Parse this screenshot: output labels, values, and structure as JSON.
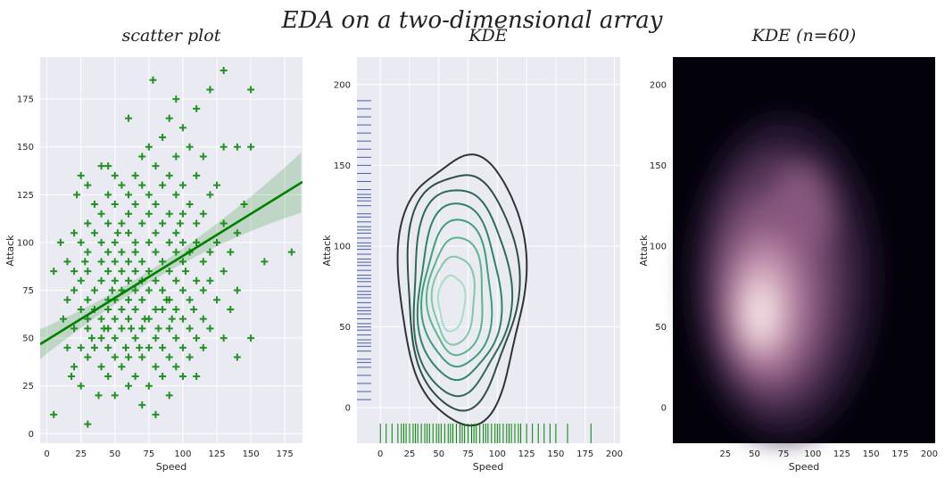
{
  "suptitle": "EDA on a two-dimensional array",
  "chart_data": [
    {
      "type": "scatter",
      "title": "scatter plot",
      "xlabel": "Speed",
      "ylabel": "Attack",
      "xlim": [
        -5,
        188
      ],
      "ylim": [
        -5,
        197
      ],
      "xticks": [
        0,
        25,
        50,
        75,
        100,
        125,
        150,
        175
      ],
      "yticks": [
        0,
        25,
        50,
        75,
        100,
        125,
        150,
        175
      ],
      "marker": "+",
      "color": "#008000",
      "grid": true,
      "regression": {
        "slope": 0.44,
        "intercept": 49,
        "ci_band": true
      },
      "points": [
        [
          5,
          10
        ],
        [
          5,
          85
        ],
        [
          10,
          100
        ],
        [
          12,
          60
        ],
        [
          15,
          45
        ],
        [
          15,
          70
        ],
        [
          15,
          90
        ],
        [
          18,
          30
        ],
        [
          20,
          35
        ],
        [
          20,
          55
        ],
        [
          20,
          75
        ],
        [
          20,
          85
        ],
        [
          20,
          105
        ],
        [
          22,
          125
        ],
        [
          25,
          25
        ],
        [
          25,
          45
        ],
        [
          25,
          65
        ],
        [
          25,
          80
        ],
        [
          25,
          100
        ],
        [
          25,
          135
        ],
        [
          28,
          90
        ],
        [
          30,
          5
        ],
        [
          30,
          40
        ],
        [
          30,
          55
        ],
        [
          30,
          60
        ],
        [
          30,
          70
        ],
        [
          30,
          85
        ],
        [
          30,
          95
        ],
        [
          30,
          110
        ],
        [
          30,
          130
        ],
        [
          33,
          50
        ],
        [
          35,
          45
        ],
        [
          35,
          65
        ],
        [
          35,
          75
        ],
        [
          35,
          105
        ],
        [
          35,
          120
        ],
        [
          38,
          20
        ],
        [
          40,
          35
        ],
        [
          40,
          50
        ],
        [
          40,
          60
        ],
        [
          40,
          80
        ],
        [
          40,
          90
        ],
        [
          40,
          100
        ],
        [
          40,
          115
        ],
        [
          40,
          140
        ],
        [
          42,
          55
        ],
        [
          45,
          30
        ],
        [
          45,
          45
        ],
        [
          45,
          55
        ],
        [
          45,
          65
        ],
        [
          45,
          70
        ],
        [
          45,
          85
        ],
        [
          45,
          95
        ],
        [
          45,
          110
        ],
        [
          45,
          125
        ],
        [
          45,
          140
        ],
        [
          48,
          75
        ],
        [
          50,
          20
        ],
        [
          50,
          40
        ],
        [
          50,
          50
        ],
        [
          50,
          60
        ],
        [
          50,
          70
        ],
        [
          50,
          80
        ],
        [
          50,
          90
        ],
        [
          50,
          100
        ],
        [
          50,
          120
        ],
        [
          50,
          135
        ],
        [
          52,
          105
        ],
        [
          55,
          35
        ],
        [
          55,
          55
        ],
        [
          55,
          65
        ],
        [
          55,
          75
        ],
        [
          55,
          85
        ],
        [
          55,
          95
        ],
        [
          55,
          110
        ],
        [
          55,
          130
        ],
        [
          58,
          45
        ],
        [
          60,
          25
        ],
        [
          60,
          40
        ],
        [
          60,
          60
        ],
        [
          60,
          70
        ],
        [
          60,
          80
        ],
        [
          60,
          90
        ],
        [
          60,
          105
        ],
        [
          60,
          115
        ],
        [
          60,
          125
        ],
        [
          60,
          165
        ],
        [
          62,
          55
        ],
        [
          65,
          30
        ],
        [
          65,
          50
        ],
        [
          65,
          65
        ],
        [
          65,
          75
        ],
        [
          65,
          85
        ],
        [
          65,
          95
        ],
        [
          65,
          100
        ],
        [
          65,
          120
        ],
        [
          65,
          135
        ],
        [
          68,
          45
        ],
        [
          70,
          15
        ],
        [
          70,
          40
        ],
        [
          70,
          55
        ],
        [
          70,
          70
        ],
        [
          70,
          80
        ],
        [
          70,
          90
        ],
        [
          70,
          110
        ],
        [
          70,
          130
        ],
        [
          70,
          145
        ],
        [
          72,
          60
        ],
        [
          75,
          25
        ],
        [
          75,
          45
        ],
        [
          75,
          60
        ],
        [
          75,
          75
        ],
        [
          75,
          85
        ],
        [
          75,
          100
        ],
        [
          75,
          115
        ],
        [
          75,
          125
        ],
        [
          75,
          150
        ],
        [
          78,
          185
        ],
        [
          80,
          10
        ],
        [
          80,
          35
        ],
        [
          80,
          50
        ],
        [
          80,
          65
        ],
        [
          80,
          80
        ],
        [
          80,
          95
        ],
        [
          80,
          105
        ],
        [
          80,
          120
        ],
        [
          80,
          140
        ],
        [
          82,
          55
        ],
        [
          85,
          30
        ],
        [
          85,
          45
        ],
        [
          85,
          65
        ],
        [
          85,
          75
        ],
        [
          85,
          90
        ],
        [
          85,
          110
        ],
        [
          85,
          130
        ],
        [
          85,
          155
        ],
        [
          88,
          70
        ],
        [
          90,
          20
        ],
        [
          90,
          40
        ],
        [
          90,
          55
        ],
        [
          90,
          70
        ],
        [
          90,
          85
        ],
        [
          90,
          100
        ],
        [
          90,
          115
        ],
        [
          90,
          135
        ],
        [
          90,
          165
        ],
        [
          92,
          60
        ],
        [
          95,
          35
        ],
        [
          95,
          50
        ],
        [
          95,
          65
        ],
        [
          95,
          80
        ],
        [
          95,
          95
        ],
        [
          95,
          105
        ],
        [
          95,
          125
        ],
        [
          95,
          145
        ],
        [
          95,
          175
        ],
        [
          98,
          110
        ],
        [
          100,
          30
        ],
        [
          100,
          45
        ],
        [
          100,
          60
        ],
        [
          100,
          75
        ],
        [
          100,
          90
        ],
        [
          100,
          100
        ],
        [
          100,
          115
        ],
        [
          100,
          130
        ],
        [
          100,
          160
        ],
        [
          102,
          85
        ],
        [
          105,
          40
        ],
        [
          105,
          55
        ],
        [
          105,
          70
        ],
        [
          105,
          95
        ],
        [
          105,
          120
        ],
        [
          105,
          150
        ],
        [
          108,
          65
        ],
        [
          110,
          30
        ],
        [
          110,
          50
        ],
        [
          110,
          80
        ],
        [
          110,
          100
        ],
        [
          110,
          110
        ],
        [
          110,
          135
        ],
        [
          110,
          170
        ],
        [
          115,
          45
        ],
        [
          115,
          60
        ],
        [
          115,
          75
        ],
        [
          115,
          90
        ],
        [
          115,
          115
        ],
        [
          115,
          145
        ],
        [
          120,
          55
        ],
        [
          120,
          80
        ],
        [
          120,
          95
        ],
        [
          120,
          125
        ],
        [
          120,
          180
        ],
        [
          125,
          70
        ],
        [
          125,
          100
        ],
        [
          125,
          130
        ],
        [
          130,
          50
        ],
        [
          130,
          85
        ],
        [
          130,
          110
        ],
        [
          130,
          150
        ],
        [
          130,
          190
        ],
        [
          135,
          65
        ],
        [
          135,
          95
        ],
        [
          140,
          40
        ],
        [
          140,
          75
        ],
        [
          140,
          105
        ],
        [
          140,
          150
        ],
        [
          145,
          120
        ],
        [
          150,
          50
        ],
        [
          150,
          150
        ],
        [
          150,
          180
        ],
        [
          160,
          90
        ],
        [
          180,
          95
        ]
      ]
    },
    {
      "type": "kde-contour",
      "title": "KDE",
      "xlabel": "Speed",
      "ylabel": "Attack",
      "xlim": [
        -20,
        205
      ],
      "ylim": [
        -22,
        217
      ],
      "xticks": [
        0,
        25,
        50,
        75,
        100,
        125,
        150,
        175,
        200
      ],
      "yticks": [
        0,
        50,
        100,
        150,
        200
      ],
      "levels": [
        {
          "center": [
            70,
            75
          ],
          "rx": 57,
          "ry": 82,
          "angle": 0.35,
          "color": "#2d3436"
        },
        {
          "center": [
            69,
            74
          ],
          "rx": 50,
          "ry": 72,
          "angle": 0.35,
          "color": "#2e4f44"
        },
        {
          "center": [
            68,
            72
          ],
          "rx": 44,
          "ry": 63,
          "angle": 0.35,
          "color": "#2e6b57"
        },
        {
          "center": [
            67,
            71
          ],
          "rx": 37,
          "ry": 54,
          "angle": 0.35,
          "color": "#2f8466"
        },
        {
          "center": [
            66,
            70
          ],
          "rx": 31,
          "ry": 45,
          "angle": 0.35,
          "color": "#3f9d77"
        },
        {
          "center": [
            65,
            69
          ],
          "rx": 25,
          "ry": 36,
          "angle": 0.35,
          "color": "#5cb38c"
        },
        {
          "center": [
            63,
            67
          ],
          "rx": 19,
          "ry": 27,
          "angle": 0.35,
          "color": "#80c8a6"
        },
        {
          "center": [
            61,
            65
          ],
          "rx": 12,
          "ry": 17,
          "angle": 0.35,
          "color": "#aadcc4"
        }
      ],
      "rug_x_color": "#008000",
      "rug_y_color": "#4c5fa0"
    },
    {
      "type": "kde-density",
      "title": "KDE (n=60)",
      "xlabel": "Speed",
      "ylabel": "Attack",
      "xlim": [
        -20,
        205
      ],
      "ylim": [
        -22,
        217
      ],
      "xticks": [
        25,
        50,
        75,
        100,
        125,
        150,
        175,
        200
      ],
      "yticks": [
        0,
        50,
        100,
        150,
        200
      ],
      "n_levels": 60,
      "background": "#03020a",
      "colors": [
        "#03020a",
        "#2a1a33",
        "#5a3a5e",
        "#8c5a82",
        "#b885a6",
        "#dfb9c9",
        "#f8eaea"
      ]
    }
  ]
}
